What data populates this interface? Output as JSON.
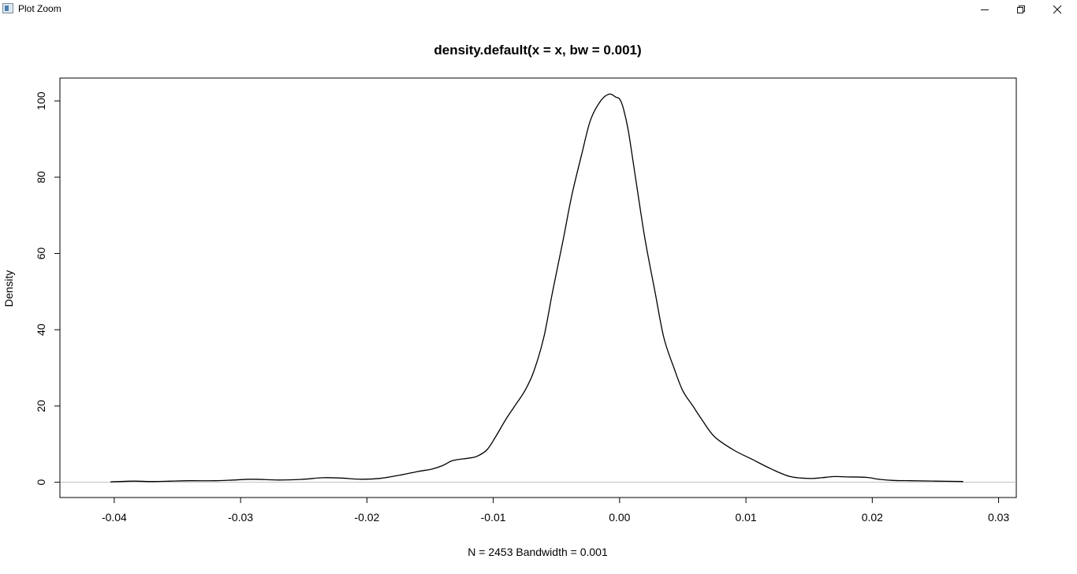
{
  "window": {
    "title": "Plot Zoom",
    "icons": {
      "app": "plot-window-icon",
      "minimize": "minimize-icon",
      "maximize": "restore-icon",
      "close": "close-icon"
    }
  },
  "chart_data": {
    "type": "line",
    "title": "density.default(x = x, bw = 0.001)",
    "xlabel": "N = 2453   Bandwidth = 0.001",
    "ylabel": "Density",
    "xlim": [
      -0.0443,
      0.0314
    ],
    "ylim": [
      -4.0,
      106.0
    ],
    "xticks": [
      -0.04,
      -0.03,
      -0.02,
      -0.01,
      0.0,
      0.01,
      0.02,
      0.03
    ],
    "xtick_labels": [
      "-0.04",
      "-0.03",
      "-0.02",
      "-0.01",
      "0.00",
      "0.01",
      "0.02",
      "0.03"
    ],
    "yticks": [
      0,
      20,
      40,
      60,
      80,
      100
    ],
    "ytick_labels": [
      "0",
      "20",
      "40",
      "60",
      "80",
      "100"
    ],
    "baseline": 0,
    "grid": false,
    "colors": {
      "line": "#000000",
      "baseline": "#bebebe",
      "frame": "#000000"
    },
    "series": [
      {
        "x": [
          -0.0403,
          -0.0395,
          -0.0385,
          -0.037,
          -0.0355,
          -0.034,
          -0.032,
          -0.0305,
          -0.029,
          -0.027,
          -0.025,
          -0.0235,
          -0.022,
          -0.0205,
          -0.019,
          -0.0175,
          -0.016,
          -0.0148,
          -0.014,
          -0.0133,
          -0.0127,
          -0.012,
          -0.0113,
          -0.0105,
          -0.0098,
          -0.009,
          -0.0083,
          -0.0075,
          -0.0068,
          -0.006,
          -0.0053,
          -0.0045,
          -0.0038,
          -0.003,
          -0.0023,
          -0.0015,
          -0.0008,
          -0.0003,
          0.0,
          0.0003,
          0.0007,
          0.0013,
          0.002,
          0.0028,
          0.0035,
          0.0043,
          0.005,
          0.0058,
          0.0065,
          0.0075,
          0.009,
          0.0105,
          0.012,
          0.0135,
          0.015,
          0.016,
          0.017,
          0.018,
          0.0195,
          0.0205,
          0.0215,
          0.023,
          0.025,
          0.0272
        ],
        "y": [
          0.1,
          0.2,
          0.3,
          0.2,
          0.3,
          0.4,
          0.4,
          0.6,
          0.8,
          0.6,
          0.8,
          1.2,
          1.1,
          0.8,
          1.0,
          1.8,
          2.8,
          3.5,
          4.4,
          5.6,
          6.0,
          6.3,
          6.8,
          8.5,
          12.0,
          16.5,
          20.0,
          24.0,
          29.0,
          38.0,
          50.0,
          63.0,
          75.0,
          86.0,
          95.0,
          100.0,
          101.8,
          101.0,
          100.5,
          98.0,
          92.0,
          79.0,
          64.0,
          50.0,
          38.0,
          30.0,
          24.0,
          20.0,
          16.5,
          12.0,
          8.5,
          6.0,
          3.5,
          1.5,
          1.0,
          1.2,
          1.5,
          1.4,
          1.3,
          0.8,
          0.5,
          0.4,
          0.3,
          0.2
        ]
      }
    ]
  }
}
